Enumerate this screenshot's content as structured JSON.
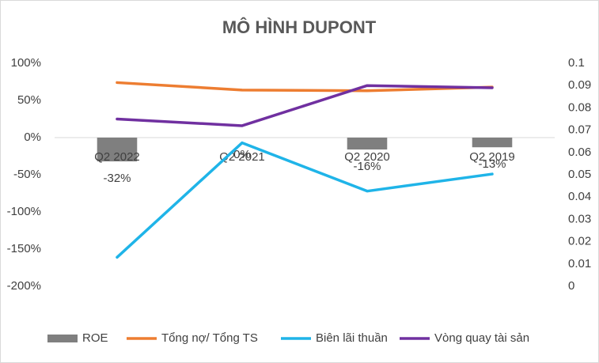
{
  "chart_data": {
    "type": "bar-line",
    "title": "MÔ HÌNH DUPONT",
    "categories": [
      "Q2 2022",
      "Q2 2021",
      "Q2 2020",
      "Q2 2019"
    ],
    "series": [
      {
        "name": "ROE",
        "type": "bar",
        "color": "#7f7f7f",
        "values": [
          -32,
          0,
          -16,
          -13
        ],
        "value_labels": [
          "-32%",
          "0%",
          "-16%",
          "-13%"
        ]
      },
      {
        "name": "Tổng nợ/ Tổng TS",
        "type": "line",
        "color": "#ed7d31",
        "values": [
          74,
          64,
          63,
          68
        ]
      },
      {
        "name": "Biên lãi thuần",
        "type": "line",
        "color": "#1fb4e8",
        "values": [
          -161,
          -7,
          -72,
          -49
        ]
      },
      {
        "name": "Vòng quay tài sản",
        "type": "line",
        "color": "#7030a0",
        "axis": "y2",
        "values": [
          0.075,
          0.072,
          0.09,
          0.089
        ]
      }
    ],
    "ylim": [
      -200,
      100
    ],
    "yticks": [
      {
        "value": -200,
        "label": "-200%"
      },
      {
        "value": -150,
        "label": "-150%"
      },
      {
        "value": -100,
        "label": "-100%"
      },
      {
        "value": -50,
        "label": "-50%"
      },
      {
        "value": 0,
        "label": "0%"
      },
      {
        "value": 50,
        "label": "50%"
      },
      {
        "value": 100,
        "label": "100%"
      }
    ],
    "y2lim": [
      0,
      0.1
    ],
    "y2ticks": [
      0,
      0.01,
      0.02,
      0.03,
      0.04,
      0.05,
      0.06,
      0.07,
      0.08,
      0.09,
      0.1
    ],
    "legend": "bottom"
  }
}
